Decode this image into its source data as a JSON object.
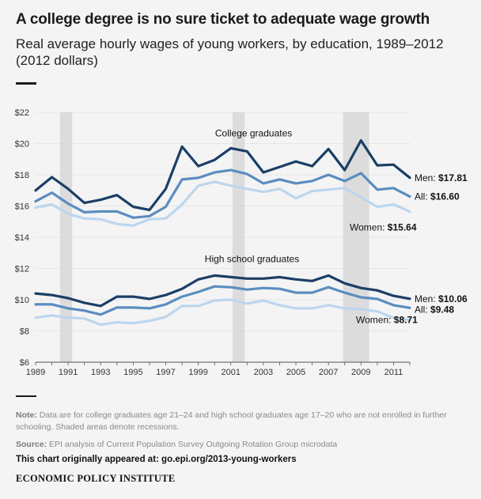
{
  "header": {
    "title": "A college degree is no sure ticket to adequate wage growth",
    "subtitle": "Real average hourly wages of young workers, by education, 1989–2012 (2012 dollars)"
  },
  "footer": {
    "note_label": "Note:",
    "note_text": "Data are for college graduates age 21–24 and high school graduates age 17–20 who are not enrolled in further schooling. Shaded areas denote recessions.",
    "source_label": "Source:",
    "source_text": "EPI analysis of Current Population Survey Outgoing Rotation Group microdata",
    "appeared": "This chart originally appeared at: go.epi.org/2013-young-workers",
    "org": "ECONOMIC POLICY INSTITUTE"
  },
  "colors": {
    "men": "#1b3f66",
    "all": "#5b8dbf",
    "women": "#bcd6ee",
    "recession": "#dcdcdc",
    "grid": "#d0d0d0"
  },
  "chart_data": {
    "type": "line",
    "title": "A college degree is no sure ticket to adequate wage growth",
    "subtitle": "Real average hourly wages of young workers, by education, 1989–2012 (2012 dollars)",
    "x": [
      1989,
      1990,
      1991,
      1992,
      1993,
      1994,
      1995,
      1996,
      1997,
      1998,
      1999,
      2000,
      2001,
      2002,
      2003,
      2004,
      2005,
      2006,
      2007,
      2008,
      2009,
      2010,
      2011,
      2012
    ],
    "xlim": [
      1989,
      2012
    ],
    "ylim": [
      6,
      22
    ],
    "x_ticks": [
      1989,
      1991,
      1993,
      1995,
      1997,
      1999,
      2001,
      2003,
      2005,
      2007,
      2009,
      2011
    ],
    "y_ticks": [
      6,
      8,
      10,
      12,
      14,
      16,
      18,
      20,
      22
    ],
    "y_tick_labels": [
      "$6",
      "$8",
      "$10",
      "$12",
      "$14",
      "$16",
      "$18",
      "$20",
      "$22"
    ],
    "grid": "horizontal",
    "recessions": [
      [
        1990.5,
        1991.25
      ],
      [
        2001.1,
        2001.85
      ],
      [
        2007.9,
        2009.5
      ]
    ],
    "group_labels": [
      {
        "text": "College graduates",
        "x": 2002.4,
        "y": 20.45
      },
      {
        "text": "High school graduates",
        "x": 2002.3,
        "y": 12.4
      }
    ],
    "series": [
      {
        "name": "Men",
        "group": "college",
        "color_key": "men",
        "values": [
          17.0,
          17.85,
          17.1,
          16.2,
          16.4,
          16.7,
          15.95,
          15.75,
          17.1,
          19.8,
          18.55,
          18.95,
          19.7,
          19.5,
          18.15,
          18.5,
          18.85,
          18.55,
          19.65,
          18.3,
          20.2,
          18.6,
          18.65,
          17.81
        ],
        "end_label": "Men:",
        "end_value": "$17.81"
      },
      {
        "name": "All",
        "group": "college",
        "color_key": "all",
        "values": [
          16.3,
          16.85,
          16.15,
          15.6,
          15.65,
          15.65,
          15.25,
          15.35,
          15.95,
          17.7,
          17.8,
          18.15,
          18.3,
          18.05,
          17.45,
          17.7,
          17.45,
          17.6,
          18.0,
          17.6,
          18.1,
          17.05,
          17.15,
          16.6
        ],
        "end_label": "All:",
        "end_value": "$16.60"
      },
      {
        "name": "Women",
        "group": "college",
        "color_key": "women",
        "values": [
          15.9,
          16.1,
          15.5,
          15.2,
          15.15,
          14.85,
          14.75,
          15.15,
          15.2,
          16.1,
          17.3,
          17.55,
          17.3,
          17.1,
          16.9,
          17.1,
          16.5,
          16.95,
          17.05,
          17.15,
          16.55,
          15.95,
          16.1,
          15.64
        ],
        "end_label": "Women:",
        "end_value": "$15.64"
      },
      {
        "name": "Men",
        "group": "highschool",
        "color_key": "men",
        "values": [
          10.4,
          10.3,
          10.1,
          9.8,
          9.6,
          10.2,
          10.2,
          10.05,
          10.3,
          10.7,
          11.3,
          11.55,
          11.45,
          11.35,
          11.35,
          11.45,
          11.3,
          11.2,
          11.55,
          11.05,
          10.75,
          10.6,
          10.25,
          10.06
        ],
        "end_label": "Men:",
        "end_value": "$10.06"
      },
      {
        "name": "All",
        "group": "highschool",
        "color_key": "all",
        "values": [
          9.7,
          9.7,
          9.45,
          9.3,
          9.05,
          9.5,
          9.5,
          9.45,
          9.7,
          10.2,
          10.5,
          10.85,
          10.8,
          10.65,
          10.75,
          10.7,
          10.45,
          10.45,
          10.8,
          10.45,
          10.15,
          10.05,
          9.65,
          9.48
        ],
        "end_label": "All:",
        "end_value": "$9.48"
      },
      {
        "name": "Women",
        "group": "highschool",
        "color_key": "women",
        "values": [
          8.85,
          9.0,
          8.85,
          8.8,
          8.4,
          8.55,
          8.5,
          8.65,
          8.9,
          9.6,
          9.6,
          9.95,
          10.0,
          9.75,
          9.95,
          9.65,
          9.45,
          9.45,
          9.65,
          9.45,
          9.4,
          9.25,
          8.85,
          8.71
        ],
        "end_label": "Women:",
        "end_value": "$8.71"
      }
    ]
  }
}
